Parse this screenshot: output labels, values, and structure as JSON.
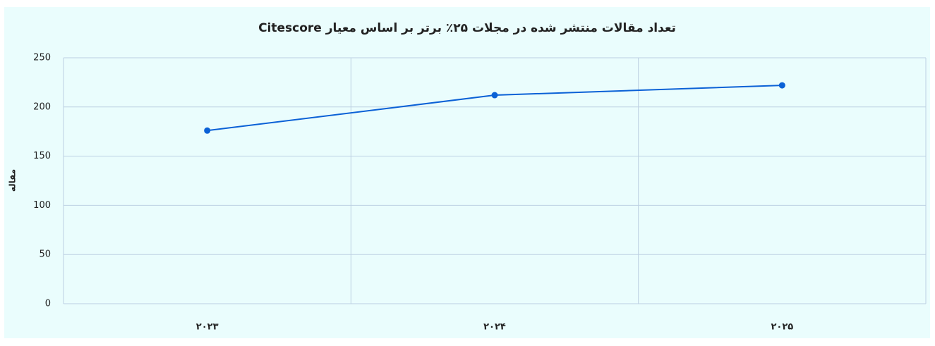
{
  "chart_data": {
    "type": "line",
    "title": "تعداد مقالات منتشر شده در مجلات ۲۵٪ برتر بر اساس معیار Citescore",
    "y_label": "مقاله",
    "categories": [
      "۲۰۲۳",
      "۲۰۲۴",
      "۲۰۲۵"
    ],
    "values": [
      176,
      212,
      222
    ],
    "color": "#0b61d6",
    "ylim": [
      0,
      250
    ],
    "yticks": [
      0,
      50,
      100,
      150,
      200,
      250
    ],
    "grid": true
  }
}
